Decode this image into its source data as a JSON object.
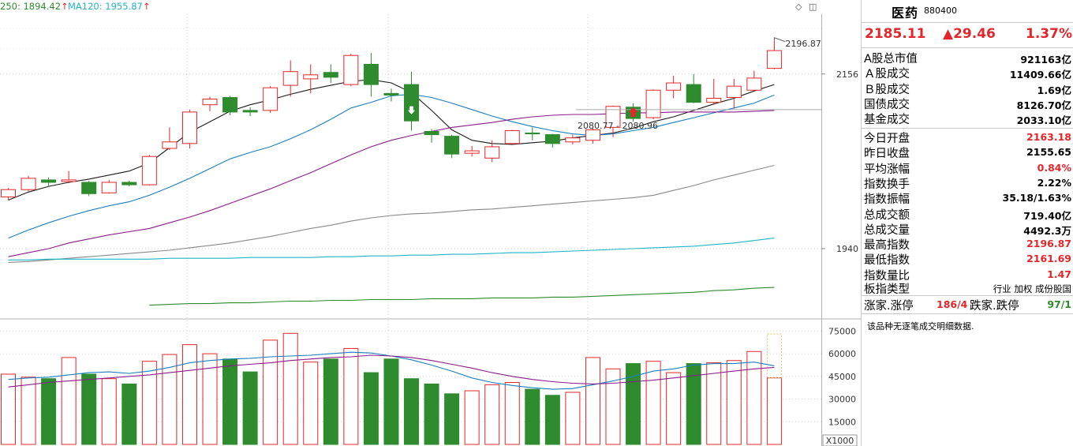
{
  "chart_data": {
    "type": "candlestick",
    "ylim": [
      1855,
      2230
    ],
    "ma_legend": [
      {
        "label": "250: 1894.42",
        "arrow": "↑",
        "color": "#2d8a2d"
      },
      {
        "label": "MA120: 1955.87",
        "arrow": "↑",
        "color": "#1fb5c6"
      }
    ],
    "y_ticks": [
      2156,
      1940
    ],
    "annotations": {
      "high_label": "2196.87",
      "range_label": "2080.77 - 2080.96"
    },
    "candles": [
      {
        "o": 2004,
        "c": 2013,
        "h": 2015,
        "l": 2000
      },
      {
        "o": 2013,
        "c": 2027,
        "h": 2030,
        "l": 2011
      },
      {
        "o": 2025,
        "c": 2022,
        "h": 2028,
        "l": 2017
      },
      {
        "o": 2023,
        "c": 2025,
        "h": 2036,
        "l": 2021
      },
      {
        "o": 2022,
        "c": 2008,
        "h": 2024,
        "l": 2005
      },
      {
        "o": 2009,
        "c": 2022,
        "h": 2025,
        "l": 2008
      },
      {
        "o": 2022,
        "c": 2019,
        "h": 2024,
        "l": 2017
      },
      {
        "o": 2019,
        "c": 2054,
        "h": 2056,
        "l": 2018
      },
      {
        "o": 2064,
        "c": 2072,
        "h": 2090,
        "l": 2062
      },
      {
        "o": 2070,
        "c": 2109,
        "h": 2112,
        "l": 2064
      },
      {
        "o": 2118,
        "c": 2125,
        "h": 2128,
        "l": 2110
      },
      {
        "o": 2127,
        "c": 2109,
        "h": 2129,
        "l": 2105
      },
      {
        "o": 2111,
        "c": 2109,
        "h": 2115,
        "l": 2104
      },
      {
        "o": 2111,
        "c": 2139,
        "h": 2141,
        "l": 2108
      },
      {
        "o": 2142,
        "c": 2159,
        "h": 2173,
        "l": 2128
      },
      {
        "o": 2150,
        "c": 2155,
        "h": 2168,
        "l": 2132
      },
      {
        "o": 2158,
        "c": 2152,
        "h": 2168,
        "l": 2145
      },
      {
        "o": 2143,
        "c": 2179,
        "h": 2181,
        "l": 2141
      },
      {
        "o": 2168,
        "c": 2143,
        "h": 2182,
        "l": 2128
      },
      {
        "o": 2132,
        "c": 2130,
        "h": 2138,
        "l": 2122
      },
      {
        "o": 2143,
        "c": 2098,
        "h": 2159,
        "l": 2086
      },
      {
        "o": 2085,
        "c": 2081,
        "h": 2088,
        "l": 2071
      },
      {
        "o": 2079,
        "c": 2057,
        "h": 2081,
        "l": 2052
      },
      {
        "o": 2058,
        "c": 2061,
        "h": 2067,
        "l": 2054
      },
      {
        "o": 2052,
        "c": 2066,
        "h": 2074,
        "l": 2047
      },
      {
        "o": 2070,
        "c": 2086,
        "h": 2087,
        "l": 2068
      },
      {
        "o": 2083,
        "c": 2082,
        "h": 2090,
        "l": 2074
      },
      {
        "o": 2081,
        "c": 2070,
        "h": 2082,
        "l": 2065
      },
      {
        "o": 2072,
        "c": 2077,
        "h": 2081,
        "l": 2069
      },
      {
        "o": 2074,
        "c": 2087,
        "h": 2089,
        "l": 2070
      },
      {
        "o": 2090,
        "c": 2116,
        "h": 2117,
        "l": 2078
      },
      {
        "o": 2115,
        "c": 2101,
        "h": 2120,
        "l": 2097
      },
      {
        "o": 2102,
        "c": 2136,
        "h": 2137,
        "l": 2100
      },
      {
        "o": 2136,
        "c": 2145,
        "h": 2154,
        "l": 2126
      },
      {
        "o": 2143,
        "c": 2121,
        "h": 2156,
        "l": 2120
      },
      {
        "o": 2121,
        "c": 2126,
        "h": 2150,
        "l": 2118
      },
      {
        "o": 2127,
        "c": 2141,
        "h": 2150,
        "l": 2113
      },
      {
        "o": 2136,
        "c": 2151,
        "h": 2160,
        "l": 2135
      },
      {
        "o": 2163,
        "c": 2185,
        "h": 2197,
        "l": 2162
      }
    ],
    "ma": [
      {
        "color": "#1a1a1a",
        "values": [
          2000,
          2010,
          2017,
          2022,
          2026,
          2031,
          2036,
          2046,
          2065,
          2084,
          2097,
          2110,
          2118,
          2124,
          2131,
          2137,
          2142,
          2147,
          2149,
          2145,
          2133,
          2111,
          2087,
          2074,
          2070,
          2069,
          2071,
          2073,
          2077,
          2080,
          2083,
          2089,
          2097,
          2103,
          2111,
          2119,
          2126,
          2135,
          2143
        ]
      },
      {
        "color": "#1a7fbf",
        "values": [
          1953,
          1963,
          1972,
          1980,
          1987,
          1993,
          1998,
          2006,
          2016,
          2027,
          2039,
          2051,
          2059,
          2066,
          2076,
          2087,
          2100,
          2114,
          2121,
          2129,
          2131,
          2127,
          2120,
          2112,
          2104,
          2097,
          2091,
          2086,
          2082,
          2080,
          2082,
          2086,
          2090,
          2096,
          2102,
          2108,
          2114,
          2120,
          2130
        ]
      },
      {
        "color": "#8b1c8b",
        "values": [
          1930,
          1935,
          1940,
          1947,
          1952,
          1957,
          1961,
          1965,
          1972,
          1979,
          1987,
          1996,
          2005,
          2014,
          2024,
          2034,
          2045,
          2056,
          2066,
          2074,
          2080,
          2085,
          2090,
          2093,
          2096,
          2100,
          2103,
          2105,
          2106,
          2106,
          2107,
          2108,
          2108,
          2109,
          2109,
          2109,
          2109,
          2110,
          2111
        ]
      },
      {
        "color": "#888888",
        "values": [
          1923,
          1924,
          1926,
          1928,
          1930,
          1932,
          1934,
          1936,
          1938,
          1941,
          1944,
          1947,
          1951,
          1955,
          1960,
          1965,
          1969,
          1974,
          1978,
          1981,
          1983,
          1984,
          1986,
          1988,
          1989,
          1991,
          1993,
          1995,
          1997,
          1999,
          2001,
          2003,
          2006,
          2012,
          2018,
          2025,
          2031,
          2037,
          2043
        ]
      },
      {
        "color": "#1fb5c6",
        "values": [
          1926,
          1926,
          1927,
          1927,
          1927,
          1927,
          1927,
          1927,
          1928,
          1928,
          1928,
          1928,
          1929,
          1929,
          1929,
          1929,
          1930,
          1930,
          1931,
          1931,
          1932,
          1932,
          1933,
          1933,
          1934,
          1935,
          1935,
          1936,
          1937,
          1938,
          1939,
          1940,
          1941,
          1942,
          1943,
          1945,
          1947,
          1950,
          1953
        ]
      },
      {
        "color": "#2d8a2d",
        "values": [
          null,
          null,
          null,
          null,
          null,
          null,
          null,
          1870,
          1871,
          1872,
          1872,
          1873,
          1873,
          1874,
          1875,
          1875,
          1876,
          1876,
          1877,
          1877,
          1877,
          1878,
          1878,
          1878,
          1879,
          1879,
          1879,
          1880,
          1880,
          1881,
          1882,
          1883,
          1884,
          1885,
          1886,
          1888,
          1889,
          1891,
          1892
        ]
      }
    ],
    "volume": {
      "y_ticks": [
        75000,
        60000,
        45000,
        30000,
        15000
      ],
      "unit_label": "X1000",
      "ylim": [
        0,
        82000
      ],
      "values": [
        46500,
        44500,
        43500,
        57500,
        46500,
        43500,
        40000,
        55000,
        59500,
        66000,
        60000,
        56500,
        48000,
        69000,
        73500,
        54500,
        56500,
        63500,
        47500,
        56500,
        43500,
        40000,
        33500,
        35500,
        39500,
        41000,
        36500,
        32500,
        34500,
        57500,
        50000,
        53500,
        55000,
        47500,
        53500,
        54000,
        55500,
        61500,
        44000
      ],
      "ma": [
        {
          "color": "#1a7fbf",
          "values": [
            43000,
            44000,
            44500,
            46000,
            47500,
            48000,
            47000,
            48500,
            51000,
            54000,
            55500,
            56500,
            57000,
            58000,
            58500,
            59000,
            60000,
            61000,
            60500,
            58500,
            56000,
            52500,
            48500,
            44000,
            41000,
            39000,
            37500,
            36500,
            37000,
            39500,
            42000,
            45000,
            48500,
            50000,
            52500,
            53500,
            53500,
            54500,
            52000
          ]
        },
        {
          "color": "#8b1c8b",
          "values": [
            38000,
            39500,
            41000,
            42000,
            43000,
            44000,
            45000,
            46000,
            47500,
            49000,
            50500,
            52000,
            53000,
            54000,
            55500,
            56500,
            57500,
            58000,
            59000,
            58500,
            57500,
            55500,
            53000,
            50500,
            47500,
            45000,
            43000,
            41500,
            40500,
            40000,
            40500,
            41500,
            42500,
            44000,
            45500,
            47000,
            48500,
            50000,
            51000
          ]
        }
      ]
    }
  },
  "panel": {
    "title": "医药",
    "code": "880400",
    "price": "2185.11",
    "change": "▲29.46",
    "change_pct": "1.37%",
    "rows1": [
      {
        "label": "A股总市值",
        "value": "921163亿"
      },
      {
        "label": "Ａ股成交",
        "value": "11409.66亿"
      },
      {
        "label": "Ｂ股成交",
        "value": "1.69亿"
      },
      {
        "label": "国债成交",
        "value": "8126.70亿"
      },
      {
        "label": "基金成交",
        "value": "2033.10亿"
      }
    ],
    "rows2": [
      {
        "label": "今日开盘",
        "value": "2163.18",
        "red": true
      },
      {
        "label": "昨日收盘",
        "value": "2155.65",
        "red": false
      },
      {
        "label": "平均涨幅",
        "value": "0.84%",
        "red": true
      },
      {
        "label": "指数换手",
        "value": "2.22%",
        "red": false
      },
      {
        "label": "指数振幅",
        "value": "35.18/1.63%",
        "red": false
      },
      {
        "label": "总成交额",
        "value": "719.40亿",
        "red": false
      },
      {
        "label": "总成交量",
        "value": "4492.3万",
        "red": false
      },
      {
        "label": "最高指数",
        "value": "2196.87",
        "red": true
      },
      {
        "label": "最低指数",
        "value": "2161.69",
        "red": true
      },
      {
        "label": "指数量比",
        "value": "1.47",
        "red": true
      }
    ],
    "board_type_label": "板指类型",
    "board_type_value": "行业 加权 成份股国",
    "up_label": "涨家.涨停",
    "up_value": "186/4",
    "down_label": "跌家.跌停",
    "down_value": "97/1",
    "footnote": "该品种无逐笔成交明细数据."
  }
}
